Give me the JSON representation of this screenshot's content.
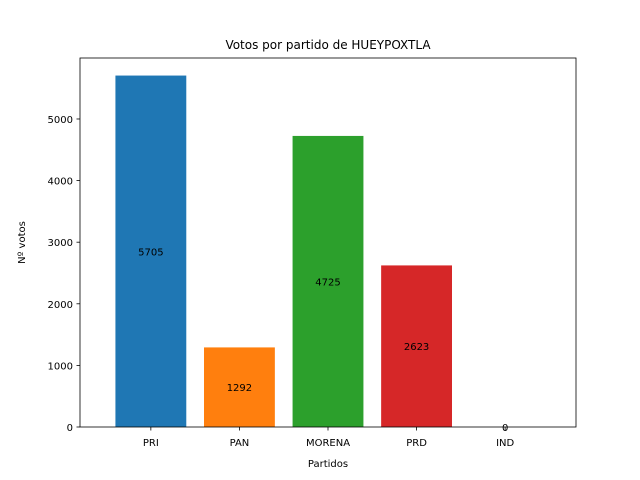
{
  "chart_data": {
    "type": "bar",
    "title": "Votos por partido de HUEYPOXTLA",
    "xlabel": "Partidos",
    "ylabel": "Nº votos",
    "categories": [
      "PRI",
      "PAN",
      "MORENA",
      "PRD",
      "IND"
    ],
    "values": [
      5705,
      1292,
      4725,
      2623,
      0
    ],
    "colors": [
      "#1f77b4",
      "#ff7f0e",
      "#2ca02c",
      "#d62728",
      "#9467bd"
    ],
    "ylim": [
      0,
      5990
    ],
    "yticks": [
      0,
      1000,
      2000,
      3000,
      4000,
      5000
    ],
    "ytick_labels": [
      "0",
      "1000",
      "2000",
      "3000",
      "4000",
      "5000"
    ],
    "grid": false,
    "legend": "none"
  }
}
